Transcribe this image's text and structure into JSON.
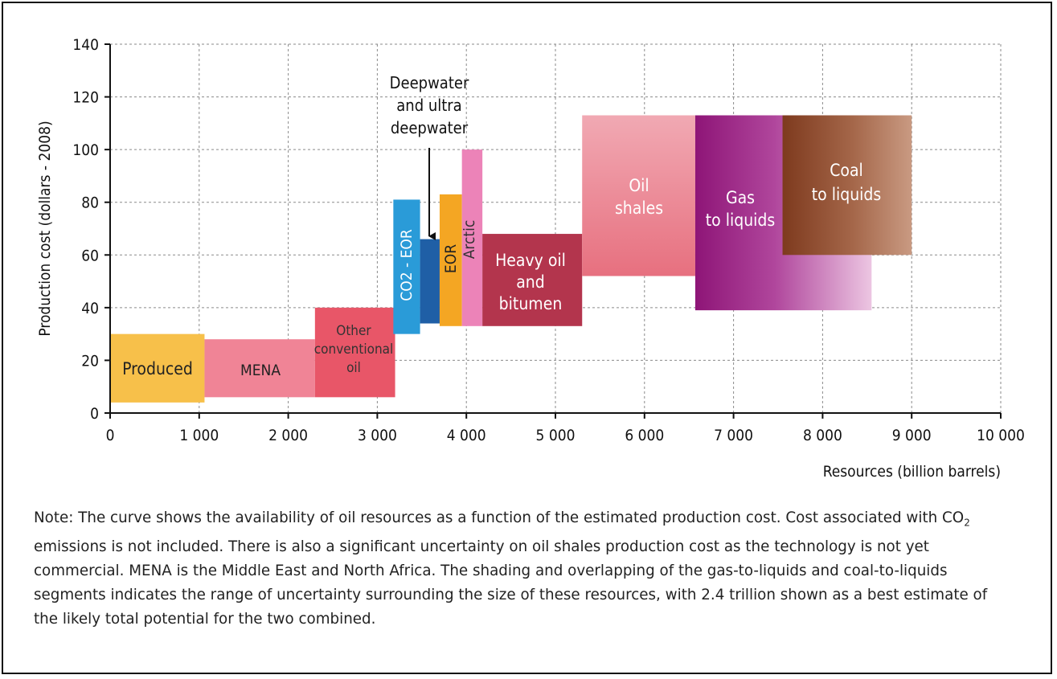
{
  "chart_data": {
    "type": "bar",
    "title": "",
    "xlabel": "Resources (billion barrels)",
    "ylabel": "Production cost (dollars - 2008)",
    "xlim": [
      0,
      10000
    ],
    "ylim": [
      0,
      140
    ],
    "x_ticks": [
      0,
      1000,
      2000,
      3000,
      4000,
      5000,
      6000,
      7000,
      8000,
      9000,
      10000
    ],
    "x_tick_labels": [
      "0",
      "1 000",
      "2 000",
      "3 000",
      "4 000",
      "5 000",
      "6 000",
      "7 000",
      "8 000",
      "9 000",
      "10 000"
    ],
    "y_ticks": [
      0,
      20,
      40,
      60,
      80,
      100,
      120,
      140
    ],
    "y_tick_labels": [
      "0",
      "20",
      "40",
      "60",
      "80",
      "100",
      "120",
      "140"
    ],
    "grid": true,
    "segments": [
      {
        "id": "produced",
        "label": "Produced",
        "x_start": 0,
        "x_end": 1060,
        "y_low": 4,
        "y_high": 30,
        "color": "#f7c04a"
      },
      {
        "id": "mena",
        "label": "MENA",
        "x_start": 1060,
        "x_end": 2300,
        "y_low": 6,
        "y_high": 28,
        "color": "#f08496"
      },
      {
        "id": "other-conventional",
        "label": "Other conventional oil",
        "x_start": 2300,
        "x_end": 3200,
        "y_low": 6,
        "y_high": 40,
        "color": "#e85668"
      },
      {
        "id": "co2-eor",
        "label": "CO2 - EOR",
        "x_start": 3180,
        "x_end": 3480,
        "y_low": 30,
        "y_high": 81,
        "color": "#2a9bd8"
      },
      {
        "id": "deepwater",
        "label": "Deepwater and ultra deepwater",
        "x_start": 3480,
        "x_end": 3700,
        "y_low": 34,
        "y_high": 66,
        "color": "#1f5fa6"
      },
      {
        "id": "eor",
        "label": "EOR",
        "x_start": 3700,
        "x_end": 3950,
        "y_low": 33,
        "y_high": 83,
        "color": "#f4a623"
      },
      {
        "id": "arctic",
        "label": "Arctic",
        "x_start": 3950,
        "x_end": 4180,
        "y_low": 33,
        "y_high": 100,
        "color": "#ec83b8"
      },
      {
        "id": "heavy-oil",
        "label": "Heavy oil and bitumen",
        "x_start": 4180,
        "x_end": 5300,
        "y_low": 33,
        "y_high": 68,
        "color": "#b3354d"
      },
      {
        "id": "oil-shales",
        "label": "Oil shales",
        "x_start": 5300,
        "x_end": 6570,
        "y_low": 52,
        "y_high": 113,
        "color": "#eb8a98"
      },
      {
        "id": "gtl",
        "label": "Gas to liquids",
        "x_start": 6570,
        "x_end": 8550,
        "y_low": 39,
        "y_high": 113,
        "color": "#931a7c"
      },
      {
        "id": "ctl",
        "label": "Coal to liquids",
        "x_start": 7550,
        "x_end": 9000,
        "y_low": 60,
        "y_high": 113,
        "color": "#8a4426"
      }
    ],
    "annotations": [
      {
        "text": "Deepwater and ultra deepwater",
        "points_to": "deepwater"
      }
    ]
  },
  "labels": {
    "produced": "Produced",
    "mena": "MENA",
    "other": [
      "Other",
      "conventional",
      "oil"
    ],
    "co2_eor": "CO2 - EOR",
    "eor": "EOR",
    "arctic": "Arctic",
    "heavy": [
      "Heavy oil",
      "and",
      "bitumen"
    ],
    "oil_shales": [
      "Oil",
      "shales"
    ],
    "gtl": [
      "Gas",
      "to liquids"
    ],
    "ctl": [
      "Coal",
      "to liquids"
    ],
    "deepwater": [
      "Deepwater",
      "and ultra",
      "deepwater"
    ]
  },
  "note": {
    "prefix": "Note: The curve shows the availability of oil resources as a function of the estimated production cost. Cost associated with CO",
    "sub": "2",
    "suffix": " emissions is not included. There is also a significant uncertainty on oil shales production cost as the technology is not yet commercial. MENA is the Middle East and North Africa. The shading and overlapping of the gas-to-liquids and coal-to-liquids segments indicates the range of uncertainty surrounding the size of these resources, with 2.4 trillion shown as a best estimate of the likely total potential for the two combined."
  }
}
